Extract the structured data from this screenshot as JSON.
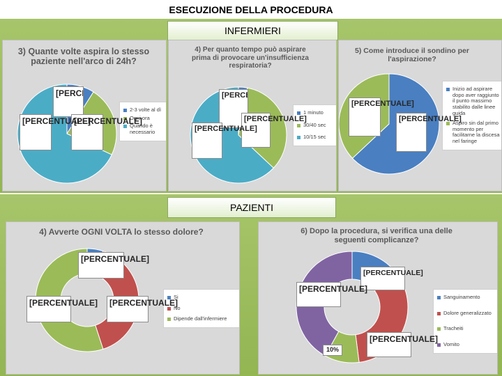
{
  "header": {
    "title": "ESECUZIONE DELLA PROCEDURA"
  },
  "sections": {
    "nurses": "INFERMIERI",
    "patients": "PAZIENTI"
  },
  "colors": {
    "blue": "#4a7fc1",
    "red": "#c0504d",
    "green": "#9bbb59",
    "purple": "#8064a2",
    "teal": "#4bacc6",
    "band": "#9dbd5c",
    "panel": "#d9d9d9"
  },
  "chart_data": [
    {
      "id": "q3",
      "type": "pie",
      "title": "3) Quante volte aspira lo stesso paziente nell'arco di 24h?",
      "categories": [
        "2-3 volte al dì",
        "Ogni ora",
        "Quando è necessario"
      ],
      "values": [
        9,
        23,
        68
      ],
      "colors": [
        "#4a7fc1",
        "#9bbb59",
        "#4bacc6"
      ],
      "data_labels": [
        "[PERCENTUALE]",
        "[PERCENTUALE]",
        "[PERCENTUALE]"
      ],
      "legend": "right"
    },
    {
      "id": "q4n",
      "type": "pie",
      "title": "4) Per quanto tempo può aspirare prima di provocare un'insufficienza respiratoria?",
      "categories": [
        "1 minuto",
        "30/40 sec",
        "10/15 sec"
      ],
      "values": [
        3,
        34,
        63
      ],
      "colors": [
        "#4a7fc1",
        "#9bbb59",
        "#4bacc6"
      ],
      "data_labels": [
        "[PERCENTUALE]",
        "[PERCENTUALE]",
        "[PERCENTUALE]"
      ],
      "legend": "right"
    },
    {
      "id": "q5",
      "type": "pie",
      "title": "5) Come introduce il sondino per l'aspirazione?",
      "categories": [
        "Inizio ad aspirare dopo aver raggiunto il punto massimo stabilito dalle linee guida",
        "Aspiro sin dal primo momento per facilitarne la discesa nel faringe"
      ],
      "values": [
        63,
        37
      ],
      "colors": [
        "#4a7fc1",
        "#9bbb59"
      ],
      "data_labels": [
        "[PERCENTUALE]",
        "[PERCENTUALE]"
      ],
      "legend": "right"
    },
    {
      "id": "q4p",
      "type": "doughnut",
      "title": "4) Avverte OGNI VOLTA lo stesso dolore?",
      "categories": [
        "Si",
        "No",
        "Dipende dall'infermiere"
      ],
      "values": [
        5,
        40,
        55
      ],
      "colors": [
        "#4a7fc1",
        "#c0504d",
        "#9bbb59"
      ],
      "data_labels": [
        "[PERCENTUALE]",
        "[PERCENTUALE]",
        "[PERCENTUALE]"
      ],
      "legend": "right"
    },
    {
      "id": "q6",
      "type": "doughnut",
      "title": "6) Dopo la procedura, si verifica una delle seguenti complicanze?",
      "categories": [
        "Sanguinamento",
        "Dolore generalizzato",
        "Tracheiti",
        "Vomito"
      ],
      "values": [
        15,
        33,
        10,
        42
      ],
      "colors": [
        "#4a7fc1",
        "#c0504d",
        "#9bbb59",
        "#8064a2"
      ],
      "data_labels": [
        "[PERCENTUALE]",
        "[PERCENTUALE]",
        "10%",
        "[PERCENTUALE]"
      ],
      "legend": "right"
    }
  ]
}
